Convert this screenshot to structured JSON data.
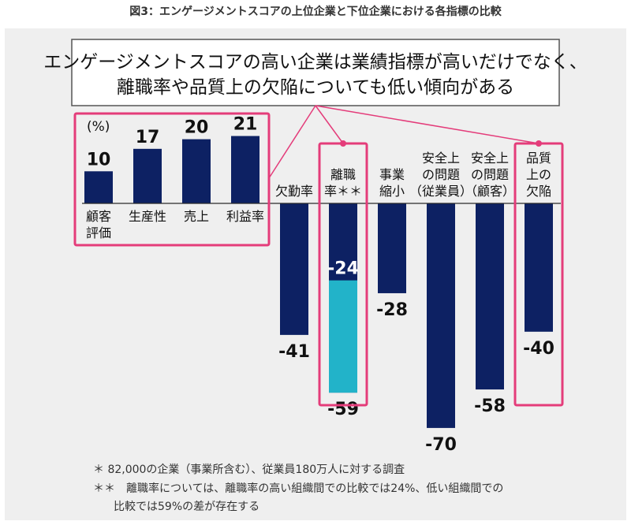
{
  "figure_title": "図3：エンゲージメントスコアの上位企業と下位企業における各指標の比較",
  "callout": {
    "line1": "エンゲージメントスコアの高い企業は業績指標が高いだけでなく、",
    "line2": "離職率や品質上の欠陥についても低い傾向がある"
  },
  "unit_label": "(%)",
  "footnotes": {
    "line1": "＊ 82,000の企業（事業所含む）、従業員180万人に対する調査",
    "line2": "＊＊　離職率については、離職率の高い組織間での比較では24%、低い組織間での",
    "line3": "比較では59%の差が存在する"
  },
  "chart_data": {
    "type": "bar",
    "title": "",
    "xlabel": "",
    "ylabel": "(%)",
    "ylim": [
      -72,
      25
    ],
    "categories": [
      [
        "顧客",
        "評価"
      ],
      [
        "生産性"
      ],
      [
        "売上"
      ],
      [
        "利益率"
      ],
      [
        "欠勤率"
      ],
      [
        "離職",
        "率＊＊"
      ],
      [
        "事業",
        "縮小"
      ],
      [
        "安全上",
        "の問題",
        "（従業員）"
      ],
      [
        "安全上",
        "の問題",
        "（顧客）"
      ],
      [
        "品質",
        "上の",
        "欠陥"
      ]
    ],
    "series": [
      {
        "values": [
          10,
          17,
          20,
          21,
          -41,
          -59,
          -28,
          -70,
          -58,
          -40
        ]
      }
    ],
    "overlay": {
      "category_index": 5,
      "value": -24
    },
    "colors": {
      "bar": "#0d2163",
      "overlay_low": "#22b3c9",
      "highlight": "#e43c7a",
      "axis": "#2a2a2a"
    },
    "highlighted_groups": [
      [
        0,
        3
      ],
      [
        5,
        5
      ],
      [
        9,
        9
      ]
    ]
  }
}
